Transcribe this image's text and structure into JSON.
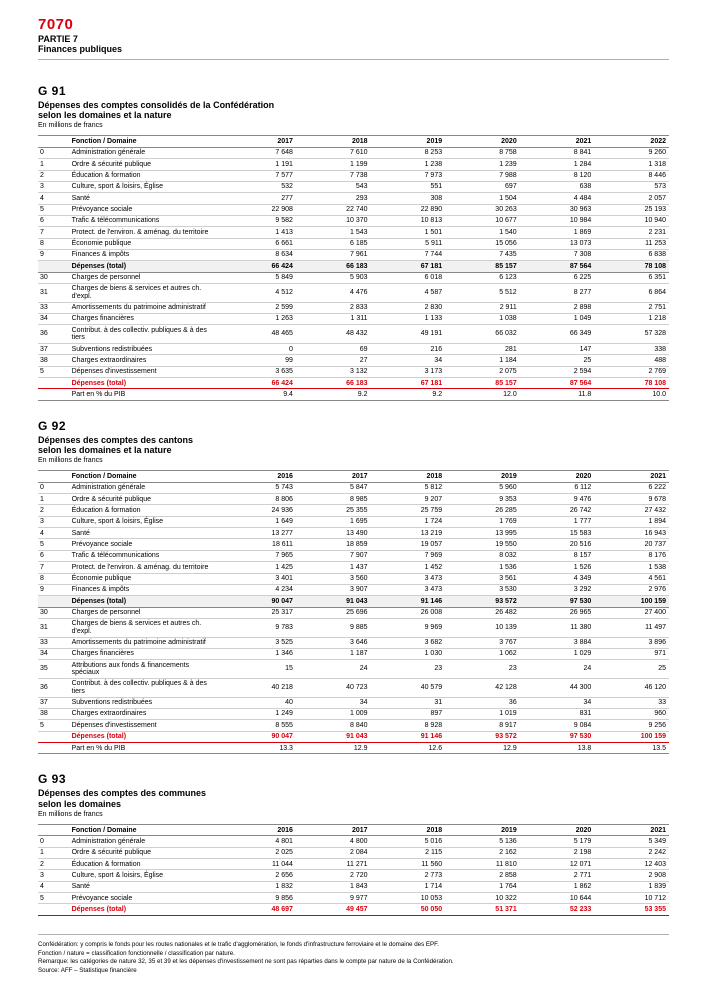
{
  "page": {
    "number": "7070",
    "title_lines": [
      "PARTIE 7",
      "Finances publiques"
    ]
  },
  "colors": {
    "accent": "#d9000d",
    "rule": "#b0b0b0",
    "shade": "#f1f1f1"
  },
  "columns": {
    "years": [
      "2017",
      "2018",
      "2019",
      "2020",
      "2021",
      "2022"
    ]
  },
  "tables": [
    {
      "code": "G 91",
      "name_lines": [
        "Dépenses des comptes consolidés de la Confédération",
        "selon les domaines et la nature"
      ],
      "sub": "En millions de francs",
      "headers": [
        "",
        "Fonction / Domaine",
        "2017",
        "2018",
        "2019",
        "2020",
        "2021",
        "2022"
      ],
      "groups": [
        {
          "rows": [
            [
              "0",
              "Administration générale",
              "7 648",
              "7 610",
              "8 253",
              "8 758",
              "8 841",
              "9 260"
            ],
            [
              "1",
              "Ordre & sécurité publique",
              "1 191",
              "1 199",
              "1 238",
              "1 239",
              "1 284",
              "1 318"
            ],
            [
              "2",
              "Éducation & formation",
              "7 577",
              "7 738",
              "7 973",
              "7 988",
              "8 120",
              "8 446"
            ],
            [
              "3",
              "Culture, sport & loisirs, Église",
              "532",
              "543",
              "551",
              "697",
              "638",
              "573"
            ],
            [
              "4",
              "Santé",
              "277",
              "293",
              "308",
              "1 504",
              "4 484",
              "2 057"
            ],
            [
              "5",
              "Prévoyance sociale",
              "22 908",
              "22 740",
              "22 890",
              "30 263",
              "30 963",
              "25 193"
            ],
            [
              "6",
              "Trafic & télécommunications",
              "9 582",
              "10 370",
              "10 813",
              "10 677",
              "10 984",
              "10 940"
            ],
            [
              "7",
              "Protect. de l'environ. & aménag. du territoire",
              "1 413",
              "1 543",
              "1 501",
              "1 540",
              "1 869",
              "2 231"
            ],
            [
              "8",
              "Économie publique",
              "6 661",
              "6 185",
              "5 911",
              "15 056",
              "13 073",
              "11 253"
            ],
            [
              "9",
              "Finances & impôts",
              "8 634",
              "7 961",
              "7 744",
              "7 435",
              "7 308",
              "6 838"
            ]
          ],
          "subtotal": [
            "",
            "Dépenses (total)",
            "66 424",
            "66 183",
            "67 181",
            "85 157",
            "87 564",
            "78 108"
          ]
        },
        {
          "rows": [
            [
              "30",
              "Charges de personnel",
              "5 849",
              "5 903",
              "6 018",
              "6 123",
              "6 225",
              "6 351"
            ],
            [
              "31",
              "Charges de biens & services et autres ch. d'expl.",
              "4 512",
              "4 476",
              "4 587",
              "5 512",
              "8 277",
              "6 864"
            ],
            [
              "33",
              "Amortissements du patrimoine administratif",
              "2 599",
              "2 833",
              "2 830",
              "2 911",
              "2 898",
              "2 751"
            ],
            [
              "34",
              "Charges financières",
              "1 263",
              "1 311",
              "1 133",
              "1 038",
              "1 049",
              "1 218"
            ],
            [
              "36",
              "Contribut. à des collectiv. publiques & à des tiers",
              "48 465",
              "48 432",
              "49 191",
              "66 032",
              "66 349",
              "57 328"
            ],
            [
              "37",
              "Subventions redistribuées",
              "0",
              "69",
              "216",
              "281",
              "147",
              "338"
            ],
            [
              "38",
              "Charges extraordinaires",
              "99",
              "27",
              "34",
              "1 184",
              "25",
              "488"
            ],
            [
              "5",
              "Dépenses d'investissement",
              "3 635",
              "3 132",
              "3 173",
              "2 075",
              "2 594",
              "2 769"
            ]
          ],
          "subtotal": null
        }
      ],
      "grand_total": [
        "",
        "Dépenses (total)",
        "66 424",
        "66 183",
        "67 181",
        "85 157",
        "87 564",
        "78 108"
      ],
      "pct_row": [
        "",
        "Part en % du PIB",
        "9.4",
        "9.2",
        "9.2",
        "12.0",
        "11.8",
        "10.0"
      ]
    },
    {
      "code": "G 92",
      "name_lines": [
        "Dépenses des comptes des cantons",
        "selon les domaines et la nature"
      ],
      "sub": "En millions de francs",
      "headers": [
        "",
        "Fonction / Domaine",
        "2016",
        "2017",
        "2018",
        "2019",
        "2020",
        "2021"
      ],
      "groups": [
        {
          "rows": [
            [
              "0",
              "Administration générale",
              "5 743",
              "5 847",
              "5 812",
              "5 960",
              "6 112",
              "6 222"
            ],
            [
              "1",
              "Ordre & sécurité publique",
              "8 806",
              "8 985",
              "9 207",
              "9 353",
              "9 476",
              "9 678"
            ],
            [
              "2",
              "Éducation & formation",
              "24 936",
              "25 355",
              "25 759",
              "26 285",
              "26 742",
              "27 432"
            ],
            [
              "3",
              "Culture, sport & loisirs, Église",
              "1 649",
              "1 695",
              "1 724",
              "1 769",
              "1 777",
              "1 894"
            ],
            [
              "4",
              "Santé",
              "13 277",
              "13 490",
              "13 219",
              "13 995",
              "15 583",
              "16 943"
            ],
            [
              "5",
              "Prévoyance sociale",
              "18 611",
              "18 859",
              "19 057",
              "19 550",
              "20 516",
              "20 737"
            ],
            [
              "6",
              "Trafic & télécommunications",
              "7 965",
              "7 907",
              "7 969",
              "8 032",
              "8 157",
              "8 176"
            ],
            [
              "7",
              "Protect. de l'environ. & aménag. du territoire",
              "1 425",
              "1 437",
              "1 452",
              "1 536",
              "1 526",
              "1 538"
            ],
            [
              "8",
              "Économie publique",
              "3 401",
              "3 560",
              "3 473",
              "3 561",
              "4 349",
              "4 561"
            ],
            [
              "9",
              "Finances & impôts",
              "4 234",
              "3 907",
              "3 473",
              "3 530",
              "3 292",
              "2 976"
            ]
          ],
          "subtotal": [
            "",
            "Dépenses (total)",
            "90 047",
            "91 043",
            "91 146",
            "93 572",
            "97 530",
            "100 159"
          ]
        },
        {
          "rows": [
            [
              "30",
              "Charges de personnel",
              "25 317",
              "25 696",
              "26 008",
              "26 482",
              "26 965",
              "27 400"
            ],
            [
              "31",
              "Charges de biens & services et autres ch. d'expl.",
              "9 783",
              "9 885",
              "9 969",
              "10 139",
              "11 380",
              "11 497"
            ],
            [
              "33",
              "Amortissements du patrimoine administratif",
              "3 525",
              "3 646",
              "3 682",
              "3 767",
              "3 884",
              "3 896"
            ],
            [
              "34",
              "Charges financières",
              "1 346",
              "1 187",
              "1 030",
              "1 062",
              "1 029",
              "971"
            ],
            [
              "35",
              "Attributions aux fonds & financements spéciaux",
              "15",
              "24",
              "23",
              "23",
              "24",
              "25"
            ],
            [
              "36",
              "Contribut. à des collectiv. publiques & à des tiers",
              "40 218",
              "40 723",
              "40 579",
              "42 128",
              "44 300",
              "46 120"
            ],
            [
              "37",
              "Subventions redistribuées",
              "40",
              "34",
              "31",
              "36",
              "34",
              "33"
            ],
            [
              "38",
              "Charges extraordinaires",
              "1 249",
              "1 009",
              "897",
              "1 019",
              "831",
              "960"
            ],
            [
              "5",
              "Dépenses d'investissement",
              "8 555",
              "8 840",
              "8 928",
              "8 917",
              "9 084",
              "9 256"
            ]
          ],
          "subtotal": null
        }
      ],
      "grand_total": [
        "",
        "Dépenses (total)",
        "90 047",
        "91 043",
        "91 146",
        "93 572",
        "97 530",
        "100 159"
      ],
      "pct_row": [
        "",
        "Part en % du PIB",
        "13.3",
        "12.9",
        "12.6",
        "12.9",
        "13.8",
        "13.5"
      ]
    },
    {
      "code": "G 93",
      "name_lines": [
        "Dépenses des comptes des communes",
        "selon les domaines"
      ],
      "sub": "En millions de francs",
      "headers": [
        "",
        "Fonction / Domaine",
        "2016",
        "2017",
        "2018",
        "2019",
        "2020",
        "2021"
      ],
      "groups": [
        {
          "rows": [
            [
              "0",
              "Administration générale",
              "4 801",
              "4 800",
              "5 016",
              "5 136",
              "5 179",
              "5 349"
            ],
            [
              "1",
              "Ordre & sécurité publique",
              "2 025",
              "2 084",
              "2 115",
              "2 162",
              "2 198",
              "2 242"
            ],
            [
              "2",
              "Éducation & formation",
              "11 044",
              "11 271",
              "11 560",
              "11 810",
              "12 071",
              "12 403"
            ],
            [
              "3",
              "Culture, sport & loisirs, Église",
              "2 656",
              "2 720",
              "2 773",
              "2 858",
              "2 771",
              "2 908"
            ],
            [
              "4",
              "Santé",
              "1 832",
              "1 843",
              "1 714",
              "1 764",
              "1 862",
              "1 839"
            ],
            [
              "5",
              "Prévoyance sociale",
              "9 856",
              "9 977",
              "10 053",
              "10 322",
              "10 644",
              "10 712"
            ]
          ],
          "subtotal": null
        }
      ],
      "grand_total": [
        "",
        "Dépenses (total)",
        "48 697",
        "49 457",
        "50 050",
        "51 371",
        "52 233",
        "53 355"
      ],
      "pct_row": null
    }
  ],
  "footnotes": [
    "Confédération: y compris le fonds pour les routes nationales et le trafic d'agglomération, le fonds d'infrastructure ferroviaire et le domaine des EPF.",
    "Fonction / nature = classification fonctionnelle / classification par nature.",
    "Remarque: les catégories de nature 32, 35 et 39 et les dépenses d'investissement ne sont pas réparties dans le compte par nature de la Confédération.",
    "Source: AFF – Statistique financière"
  ]
}
